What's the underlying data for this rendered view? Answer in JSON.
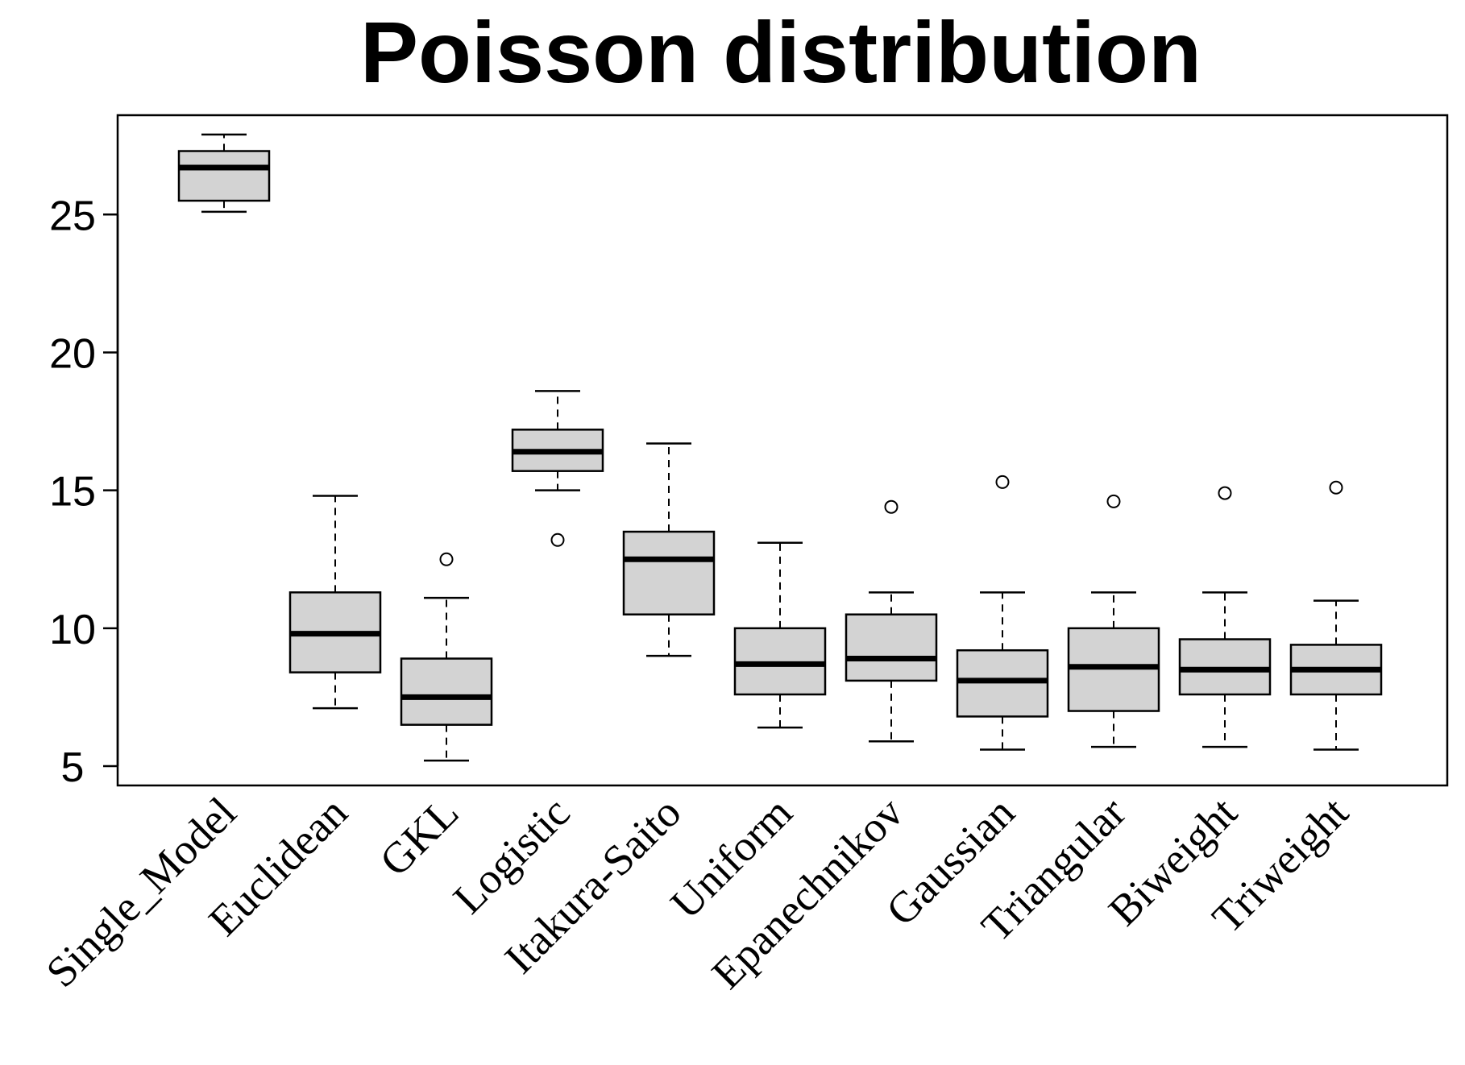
{
  "chart_data": {
    "type": "boxplot",
    "title": "Poisson distribution",
    "xlabel": "",
    "ylabel": "",
    "ylim": [
      4.3,
      28.6
    ],
    "yticks": [
      5,
      10,
      15,
      20,
      25
    ],
    "grid": false,
    "box_fill": "#d3d3d3",
    "categories": [
      "Single_Model",
      "Euclidean",
      "GKL",
      "Logistic",
      "Itakura-Saito",
      "Uniform",
      "Epanechnikov",
      "Gaussian",
      "Triangular",
      "Biweight",
      "Triweight"
    ],
    "series": [
      {
        "name": "Single_Model",
        "whisker_low": 25.1,
        "q1": 25.5,
        "median": 26.7,
        "q3": 27.3,
        "whisker_high": 27.9,
        "outliers": []
      },
      {
        "name": "Euclidean",
        "whisker_low": 7.1,
        "q1": 8.4,
        "median": 9.8,
        "q3": 11.3,
        "whisker_high": 14.8,
        "outliers": []
      },
      {
        "name": "GKL",
        "whisker_low": 5.2,
        "q1": 6.5,
        "median": 7.5,
        "q3": 8.9,
        "whisker_high": 11.1,
        "outliers": [
          12.5
        ]
      },
      {
        "name": "Logistic",
        "whisker_low": 15.0,
        "q1": 15.7,
        "median": 16.4,
        "q3": 17.2,
        "whisker_high": 18.6,
        "outliers": [
          13.2
        ]
      },
      {
        "name": "Itakura-Saito",
        "whisker_low": 9.0,
        "q1": 10.5,
        "median": 12.5,
        "q3": 13.5,
        "whisker_high": 16.7,
        "outliers": []
      },
      {
        "name": "Uniform",
        "whisker_low": 6.4,
        "q1": 7.6,
        "median": 8.7,
        "q3": 10.0,
        "whisker_high": 13.1,
        "outliers": []
      },
      {
        "name": "Epanechnikov",
        "whisker_low": 5.9,
        "q1": 8.1,
        "median": 8.9,
        "q3": 10.5,
        "whisker_high": 11.3,
        "outliers": [
          14.4
        ]
      },
      {
        "name": "Gaussian",
        "whisker_low": 5.6,
        "q1": 6.8,
        "median": 8.1,
        "q3": 9.2,
        "whisker_high": 11.3,
        "outliers": [
          15.3
        ]
      },
      {
        "name": "Triangular",
        "whisker_low": 5.7,
        "q1": 7.0,
        "median": 8.6,
        "q3": 10.0,
        "whisker_high": 11.3,
        "outliers": [
          14.6
        ]
      },
      {
        "name": "Biweight",
        "whisker_low": 5.7,
        "q1": 7.6,
        "median": 8.5,
        "q3": 9.6,
        "whisker_high": 11.3,
        "outliers": [
          14.9
        ]
      },
      {
        "name": "Triweight",
        "whisker_low": 5.6,
        "q1": 7.6,
        "median": 8.5,
        "q3": 9.4,
        "whisker_high": 11.0,
        "outliers": [
          15.1
        ]
      }
    ]
  }
}
